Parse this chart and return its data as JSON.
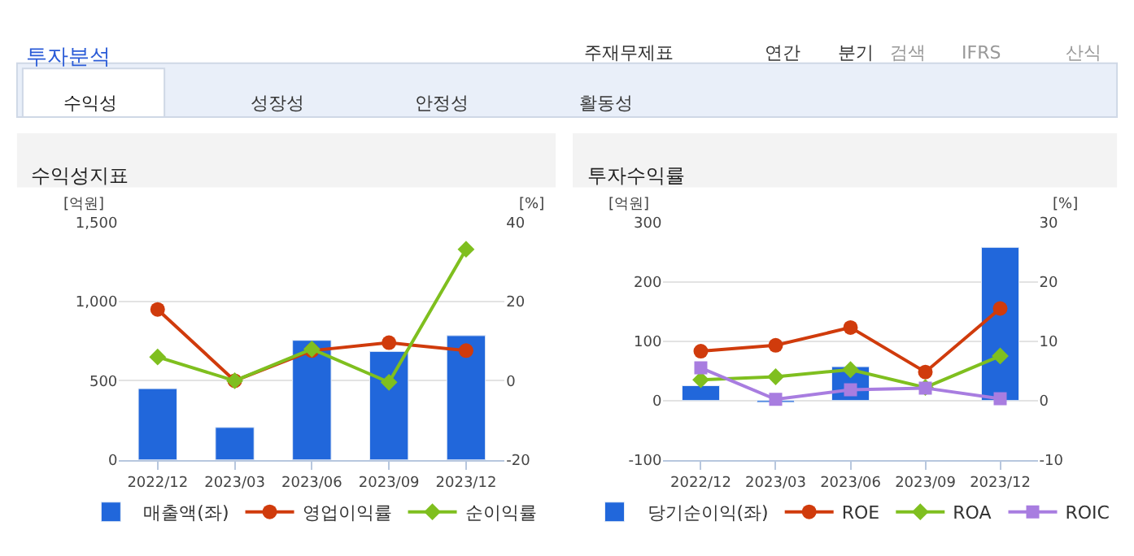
{
  "chart_data": [
    {
      "type": "other",
      "annotations": [
        "투자분석",
        "주재무제표",
        "연간",
        "분기",
        "검색",
        "IFRS",
        "산식",
        "수익성",
        "성장성",
        "안정성",
        "활동성"
      ]
    },
    {
      "type": "bar",
      "title": "수익성지표",
      "categories": [
        "2022/12",
        "2023/03",
        "2023/06",
        "2023/09",
        "2023/12"
      ],
      "ylabel": "[억원]",
      "y2label": "[%]",
      "ylim": [
        0,
        1500
      ],
      "yticks": [
        0,
        500,
        {
          "value": 1000,
          "label": "1,000"
        },
        {
          "value": 1500,
          "label": "1,500"
        }
      ],
      "y2lim": [
        -20,
        40
      ],
      "y2ticks": [
        -20,
        0,
        20,
        40
      ],
      "grid": "y",
      "legend": "bottom",
      "series": [
        {
          "name": "매출액(좌)",
          "type": "bar",
          "color": "#2167db",
          "values": [
            450,
            205,
            755,
            685,
            785
          ]
        },
        {
          "name": "영업이익률",
          "type": "line",
          "axis": "y2",
          "marker": "circle",
          "color": "#d03b0c",
          "values": [
            18,
            0,
            7.6,
            9.6,
            7.6
          ]
        },
        {
          "name": "순이익률",
          "type": "line",
          "axis": "y2",
          "marker": "diamond",
          "color": "#7fbf1f",
          "values": [
            6,
            0,
            8,
            -0.4,
            33.2
          ]
        }
      ]
    },
    {
      "type": "bar",
      "title": "투자수익률",
      "categories": [
        "2022/12",
        "2023/03",
        "2023/06",
        "2023/09",
        "2023/12"
      ],
      "ylabel": "[억원]",
      "y2label": "[%]",
      "ylim": [
        -100,
        300
      ],
      "yticks": [
        -100,
        0,
        100,
        200,
        300
      ],
      "y2lim": [
        -10,
        30
      ],
      "y2ticks": [
        -10,
        0,
        10,
        20,
        30
      ],
      "grid": "y",
      "legend": "bottom",
      "series": [
        {
          "name": "당기순이익(좌)",
          "type": "bar",
          "color": "#2167db",
          "values": [
            25,
            -3,
            57,
            null,
            258
          ]
        },
        {
          "name": "ROE",
          "type": "line",
          "axis": "y2",
          "marker": "circle",
          "color": "#d03b0c",
          "values": [
            8.3,
            9.3,
            12.3,
            4.8,
            15.5
          ]
        },
        {
          "name": "ROA",
          "type": "line",
          "axis": "y2",
          "marker": "diamond",
          "color": "#7fbf1f",
          "values": [
            3.5,
            4.0,
            5.2,
            2.2,
            7.5
          ]
        },
        {
          "name": "ROIC",
          "type": "line",
          "axis": "y2",
          "marker": "square",
          "color": "#a87de0",
          "values": [
            5.5,
            0.2,
            1.8,
            2.1,
            0.3
          ]
        }
      ]
    }
  ]
}
